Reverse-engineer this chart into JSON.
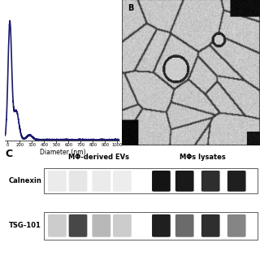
{
  "background_color": "#ffffff",
  "panel_a": {
    "xlabel": "Diameter (nm)",
    "xlim": [
      80,
      1020
    ],
    "ylim": [
      0,
      1.05
    ],
    "line_color": "#1a1a6e",
    "line_width": 1.2
  },
  "panel_b": {
    "label": "B"
  },
  "panel_c": {
    "label": "C",
    "col1_label": "MΦ-derived EVs",
    "col2_label": "MΦs lysates",
    "row1_label": "Calnexin",
    "row2_label": "TSG-101"
  }
}
